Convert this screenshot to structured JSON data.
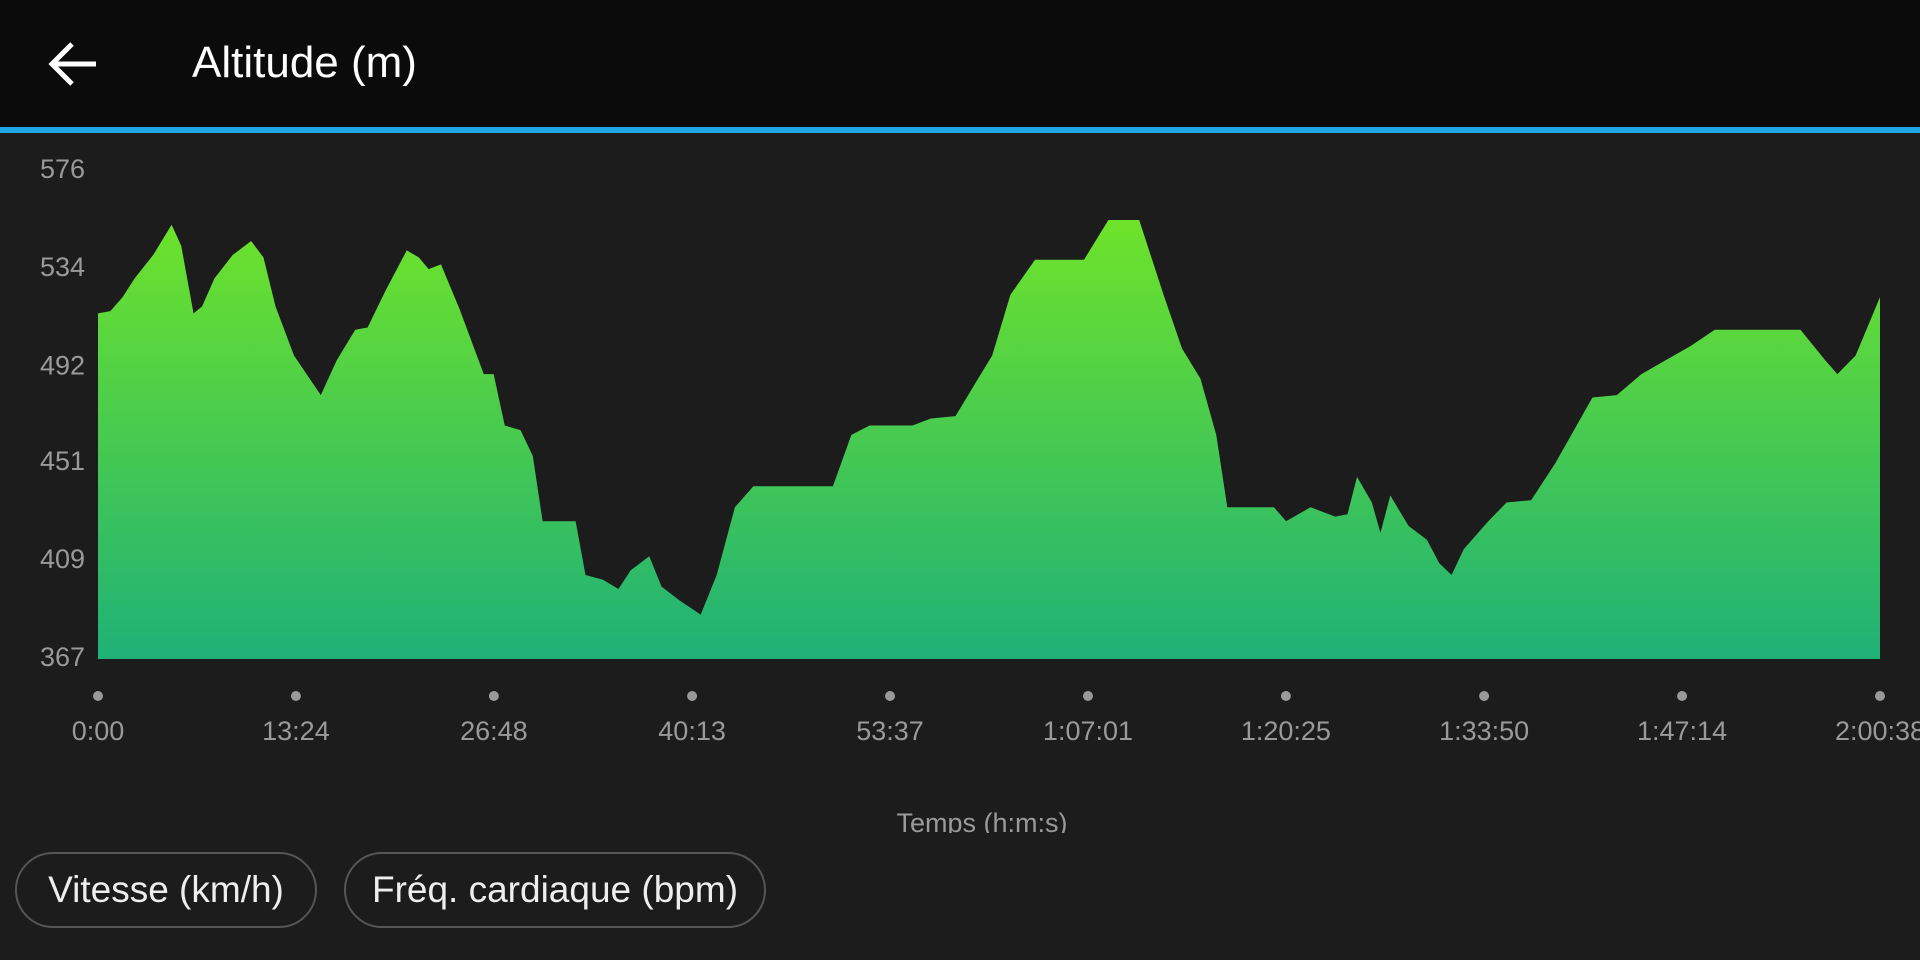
{
  "header": {
    "title": "Altitude (m)"
  },
  "chart_data": {
    "type": "area",
    "x_label": "Temps (h:m:s)",
    "x": [
      0,
      50,
      100,
      149,
      224,
      299,
      338,
      388,
      423,
      473,
      547,
      622,
      672,
      721,
      796,
      905,
      970,
      1045,
      1095,
      1169,
      1254,
      1303,
      1343,
      1393,
      1468,
      1567,
      1607,
      1652,
      1716,
      1766,
      1806,
      1891,
      1940,
      1980,
      2050,
      2114,
      2164,
      2239,
      2289,
      2363,
      2448,
      2513,
      2587,
      2662,
      2786,
      2985,
      3060,
      3134,
      3308,
      3383,
      3483,
      3557,
      3632,
      3706,
      3806,
      4005,
      4104,
      4229,
      4328,
      4403,
      4478,
      4542,
      4587,
      4776,
      4826,
      4925,
      5025,
      5075,
      5114,
      5174,
      5209,
      5249,
      5323,
      5398,
      5448,
      5498,
      5547,
      5647,
      5721,
      5821,
      5920,
      6070,
      6169,
      6269,
      6368,
      6468,
      6567,
      6667,
      6915,
      7015,
      7065,
      7139,
      7238
    ],
    "values": [
      515,
      516,
      522,
      530,
      540,
      553,
      544,
      515,
      518,
      530,
      540,
      546,
      539,
      518,
      497,
      480,
      495,
      508,
      509,
      525,
      542,
      539,
      534,
      536,
      517,
      489,
      489,
      467,
      465,
      454,
      426,
      426,
      426,
      403,
      401,
      397,
      405,
      411,
      398,
      392,
      386,
      403,
      432,
      441,
      441,
      441,
      463,
      467,
      467,
      470,
      471,
      484,
      497,
      523,
      538,
      538,
      555,
      555,
      523,
      500,
      487,
      463,
      432,
      432,
      426,
      432,
      428,
      429,
      445,
      434,
      421,
      437,
      424,
      418,
      408,
      403,
      414,
      426,
      434,
      435,
      451,
      479,
      480,
      489,
      495,
      501,
      508,
      508,
      508,
      495,
      489,
      497,
      522
    ],
    "gradient": [
      "#6ee32a",
      "#1fb177"
    ],
    "xlim": [
      0,
      7238
    ],
    "xticks": [
      {
        "value": 0,
        "label": "0:00"
      },
      {
        "value": 804,
        "label": "13:24"
      },
      {
        "value": 1608,
        "label": "26:48"
      },
      {
        "value": 2413,
        "label": "40:13"
      },
      {
        "value": 3217,
        "label": "53:37"
      },
      {
        "value": 4021,
        "label": "1:07:01"
      },
      {
        "value": 4825,
        "label": "1:20:25"
      },
      {
        "value": 5630,
        "label": "1:33:50"
      },
      {
        "value": 6434,
        "label": "1:47:14"
      },
      {
        "value": 7238,
        "label": "2:00:38"
      }
    ],
    "ylim": [
      367,
      576
    ],
    "yticks": [
      367,
      409,
      451,
      492,
      534,
      576
    ],
    "grid": false
  },
  "buttons": [
    {
      "label": "Vitesse (km/h)"
    },
    {
      "label": "Fréq. cardiaque (bpm)"
    }
  ]
}
